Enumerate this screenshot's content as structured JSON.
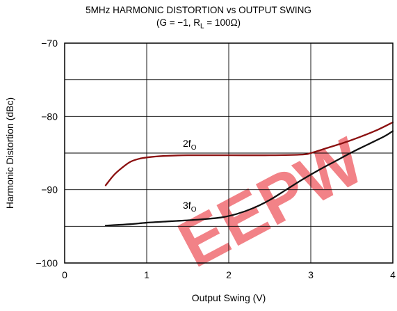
{
  "chart_data": {
    "type": "line",
    "title": "5MHz HARMONIC DISTORTION vs OUTPUT SWING",
    "subtitle": {
      "prefix": "(G = −1, R",
      "subscript": "L",
      "suffix": " = 100Ω)"
    },
    "xlabel": "Output Swing (V)",
    "ylabel": "Harmonic Distortion (dBc)",
    "xlim": [
      0,
      4
    ],
    "ylim": [
      -100,
      -70
    ],
    "x_ticks": [
      0,
      1,
      2,
      3,
      4
    ],
    "x_tick_labels": [
      "0",
      "1",
      "2",
      "3",
      "4"
    ],
    "y_ticks": [
      -70,
      -80,
      -90,
      -100
    ],
    "y_tick_labels": [
      "−70",
      "−80",
      "−90",
      "−100"
    ],
    "grid": true,
    "series": [
      {
        "label_base": "2f",
        "label_sub": "O",
        "color": "#8b1010",
        "x": [
          0.5,
          0.6,
          0.7,
          0.8,
          0.9,
          1.0,
          1.2,
          1.5,
          2.0,
          2.5,
          2.9,
          3.0,
          3.2,
          3.4,
          3.6,
          3.8,
          4.0
        ],
        "y": [
          -89.4,
          -88.0,
          -87.0,
          -86.2,
          -85.8,
          -85.6,
          -85.4,
          -85.3,
          -85.3,
          -85.3,
          -85.2,
          -85.0,
          -84.3,
          -83.6,
          -82.8,
          -81.9,
          -80.8
        ]
      },
      {
        "label_base": "3f",
        "label_sub": "O",
        "color": "#111111",
        "x": [
          0.5,
          0.8,
          1.0,
          1.3,
          1.6,
          1.9,
          2.1,
          2.3,
          2.5,
          2.7,
          2.9,
          3.1,
          3.3,
          3.5,
          3.7,
          3.9,
          4.0
        ],
        "y": [
          -94.9,
          -94.7,
          -94.5,
          -94.3,
          -94.1,
          -93.8,
          -93.3,
          -92.5,
          -91.4,
          -90.0,
          -88.6,
          -87.3,
          -86.1,
          -84.9,
          -83.8,
          -82.7,
          -82.0
        ]
      }
    ]
  },
  "watermark": {
    "text": "EEPW",
    "color": "#e81c24"
  }
}
